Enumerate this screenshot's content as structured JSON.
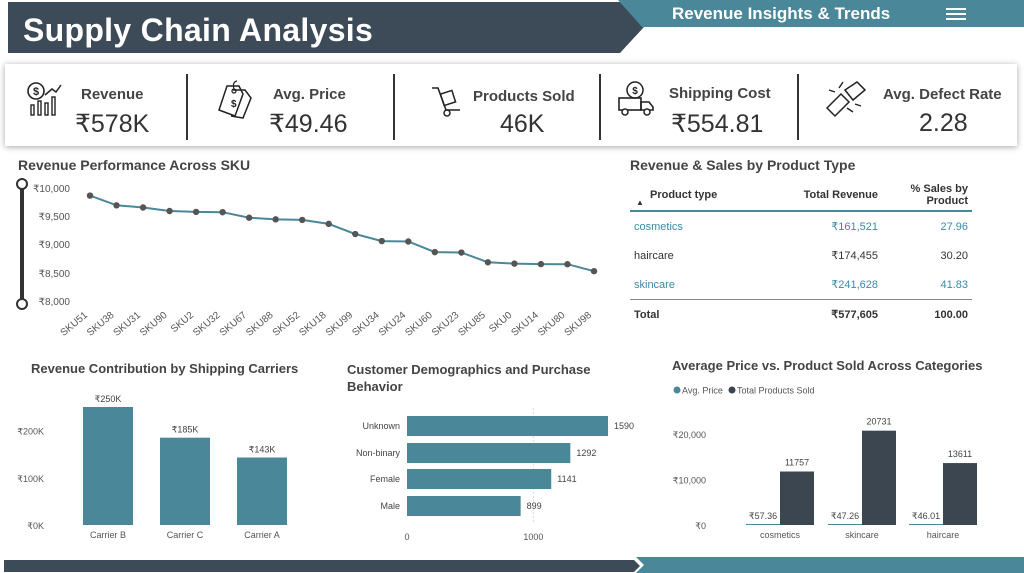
{
  "header": {
    "title": "Supply Chain Analysis",
    "subtitle": "Revenue Insights & Trends",
    "menu_icon": "hamburger-menu-icon"
  },
  "colors": {
    "navy": "#3d4a57",
    "teal": "#4a8799",
    "table_link": "#3d89a8",
    "dark_bar": "#3b4651"
  },
  "kpis": [
    {
      "label": "Revenue",
      "value": "₹578K",
      "icon": "revenue-chart-icon"
    },
    {
      "label": "Avg. Price",
      "value": "₹49.46",
      "icon": "price-tag-icon"
    },
    {
      "label": "Products Sold",
      "value": "46K",
      "icon": "hand-truck-icon"
    },
    {
      "label": "Shipping Cost",
      "value": "₹554.81",
      "icon": "delivery-truck-icon"
    },
    {
      "label": "Avg. Defect Rate",
      "value": "2.28",
      "icon": "broken-item-icon"
    }
  ],
  "sku_chart": {
    "title": "Revenue Performance Across SKU",
    "y_ticks": [
      "₹10,000",
      "₹9,500",
      "₹9,000",
      "₹8,500",
      "₹8,000"
    ]
  },
  "revenue_table": {
    "title": "Revenue & Sales by Product Type",
    "columns": [
      "Product type",
      "Total Revenue",
      "% Sales by Product"
    ],
    "rows": [
      {
        "type": "cosmetics",
        "revenue": "₹161,521",
        "pct": "27.96"
      },
      {
        "type": "haircare",
        "revenue": "₹174,455",
        "pct": "30.20"
      },
      {
        "type": "skincare",
        "revenue": "₹241,628",
        "pct": "41.83"
      }
    ],
    "total": {
      "label": "Total",
      "revenue": "₹577,605",
      "pct": "100.00"
    }
  },
  "carrier_chart": {
    "title": "Revenue Contribution by Shipping Carriers"
  },
  "demo_chart": {
    "title_line1": "Customer Demographics and Purchase",
    "title_line2": "Behavior"
  },
  "price_chart": {
    "title": "Average Price vs. Product Sold Across Categories"
  },
  "chart_data": [
    {
      "type": "line",
      "categories": [
        "SKU51",
        "SKU38",
        "SKU31",
        "SKU90",
        "SKU2",
        "SKU32",
        "SKU67",
        "SKU88",
        "SKU52",
        "SKU18",
        "SKU99",
        "SKU34",
        "SKU24",
        "SKU60",
        "SKU23",
        "SKU85",
        "SKU0",
        "SKU14",
        "SKU80",
        "SKU98"
      ],
      "values": [
        9866,
        9693,
        9655,
        9593,
        9577,
        9572,
        9474,
        9445,
        9435,
        9365,
        9185,
        9061,
        9053,
        8865,
        8858,
        8685,
        8662,
        8653,
        8651,
        8528
      ],
      "ylim": [
        8000,
        10000
      ],
      "y_ticks": [
        8000,
        8500,
        9000,
        9500,
        10000
      ]
    },
    {
      "type": "bar",
      "categories": [
        "Carrier B",
        "Carrier C",
        "Carrier A"
      ],
      "values": [
        250,
        185,
        143
      ],
      "data_labels": [
        "₹250K",
        "₹185K",
        "₹143K"
      ],
      "y_ticks": [
        "₹0K",
        "₹100K",
        "₹200K"
      ],
      "ylim": [
        0,
        250
      ]
    },
    {
      "type": "bar",
      "orientation": "horizontal",
      "categories": [
        "Unknown",
        "Non-binary",
        "Female",
        "Male"
      ],
      "values": [
        1590,
        1292,
        1141,
        899
      ],
      "x_ticks": [
        0,
        1000
      ],
      "xlim": [
        0,
        1700
      ]
    },
    {
      "type": "bar",
      "categories": [
        "cosmetics",
        "skincare",
        "haircare"
      ],
      "series": [
        {
          "name": "Avg. Price",
          "values": [
            57.36,
            47.26,
            46.01
          ],
          "labels": [
            "₹57.36",
            "₹47.26",
            "₹46.01"
          ],
          "color": "#4a8799"
        },
        {
          "name": "Total Products Sold",
          "values": [
            11757,
            20731,
            13611
          ],
          "labels": [
            "11757",
            "20731",
            "13611"
          ],
          "color": "#3b4651"
        }
      ],
      "y_ticks": [
        "₹0",
        "₹10,000",
        "₹20,000"
      ],
      "ylim": [
        0,
        23000
      ],
      "legend": "top-left"
    }
  ]
}
